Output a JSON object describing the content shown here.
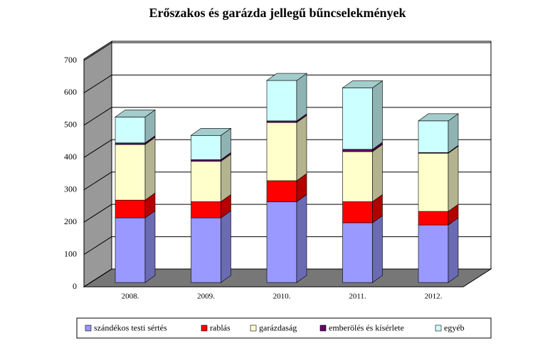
{
  "chart_data": {
    "type": "bar3d_stacked",
    "title": "Erőszakos és garázda jellegű bűncselekmények",
    "categories": [
      "2008.",
      "2009.",
      "2010.",
      "2011.",
      "2012."
    ],
    "series": [
      {
        "name": "szándékos testi sértés",
        "color": "#9999ff",
        "values": [
          200,
          200,
          250,
          185,
          178
        ]
      },
      {
        "name": "rablás",
        "color": "#ff0000",
        "values": [
          55,
          50,
          65,
          65,
          42
        ]
      },
      {
        "name": "garázdaság",
        "color": "#ffffcc",
        "values": [
          172,
          125,
          180,
          155,
          180
        ]
      },
      {
        "name": "emberölés és kísérlete",
        "color": "#660066",
        "values": [
          5,
          5,
          5,
          7,
          2
        ]
      },
      {
        "name": "egyéb",
        "color": "#ccffff",
        "values": [
          80,
          75,
          125,
          190,
          98
        ]
      }
    ],
    "ylim": [
      0,
      700
    ],
    "yticks": [
      0,
      100,
      200,
      300,
      400,
      500,
      600,
      700
    ],
    "grid": true,
    "legend": "bottom"
  }
}
